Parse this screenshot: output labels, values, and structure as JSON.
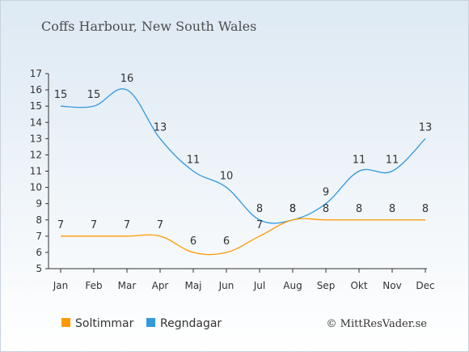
{
  "chart_data": {
    "type": "line",
    "title": "Coffs Harbour, New South Wales",
    "categories": [
      "Jan",
      "Feb",
      "Mar",
      "Apr",
      "Maj",
      "Jun",
      "Jul",
      "Aug",
      "Sep",
      "Okt",
      "Nov",
      "Dec"
    ],
    "series": [
      {
        "name": "Soltimmar",
        "color": "#ff9900",
        "values": [
          7,
          7,
          7,
          7,
          6,
          6,
          7,
          8,
          8,
          8,
          8,
          8
        ]
      },
      {
        "name": "Regndagar",
        "color": "#3399dd",
        "values": [
          15,
          15,
          16,
          13,
          11,
          10,
          8,
          8,
          9,
          11,
          11,
          13
        ]
      }
    ],
    "ylim": [
      5,
      17
    ],
    "yticks": [
      5,
      6,
      7,
      8,
      9,
      10,
      11,
      12,
      13,
      14,
      15,
      16,
      17
    ],
    "legend_position": "bottom-left",
    "grid": false
  },
  "credit": "© MittResVader.se"
}
